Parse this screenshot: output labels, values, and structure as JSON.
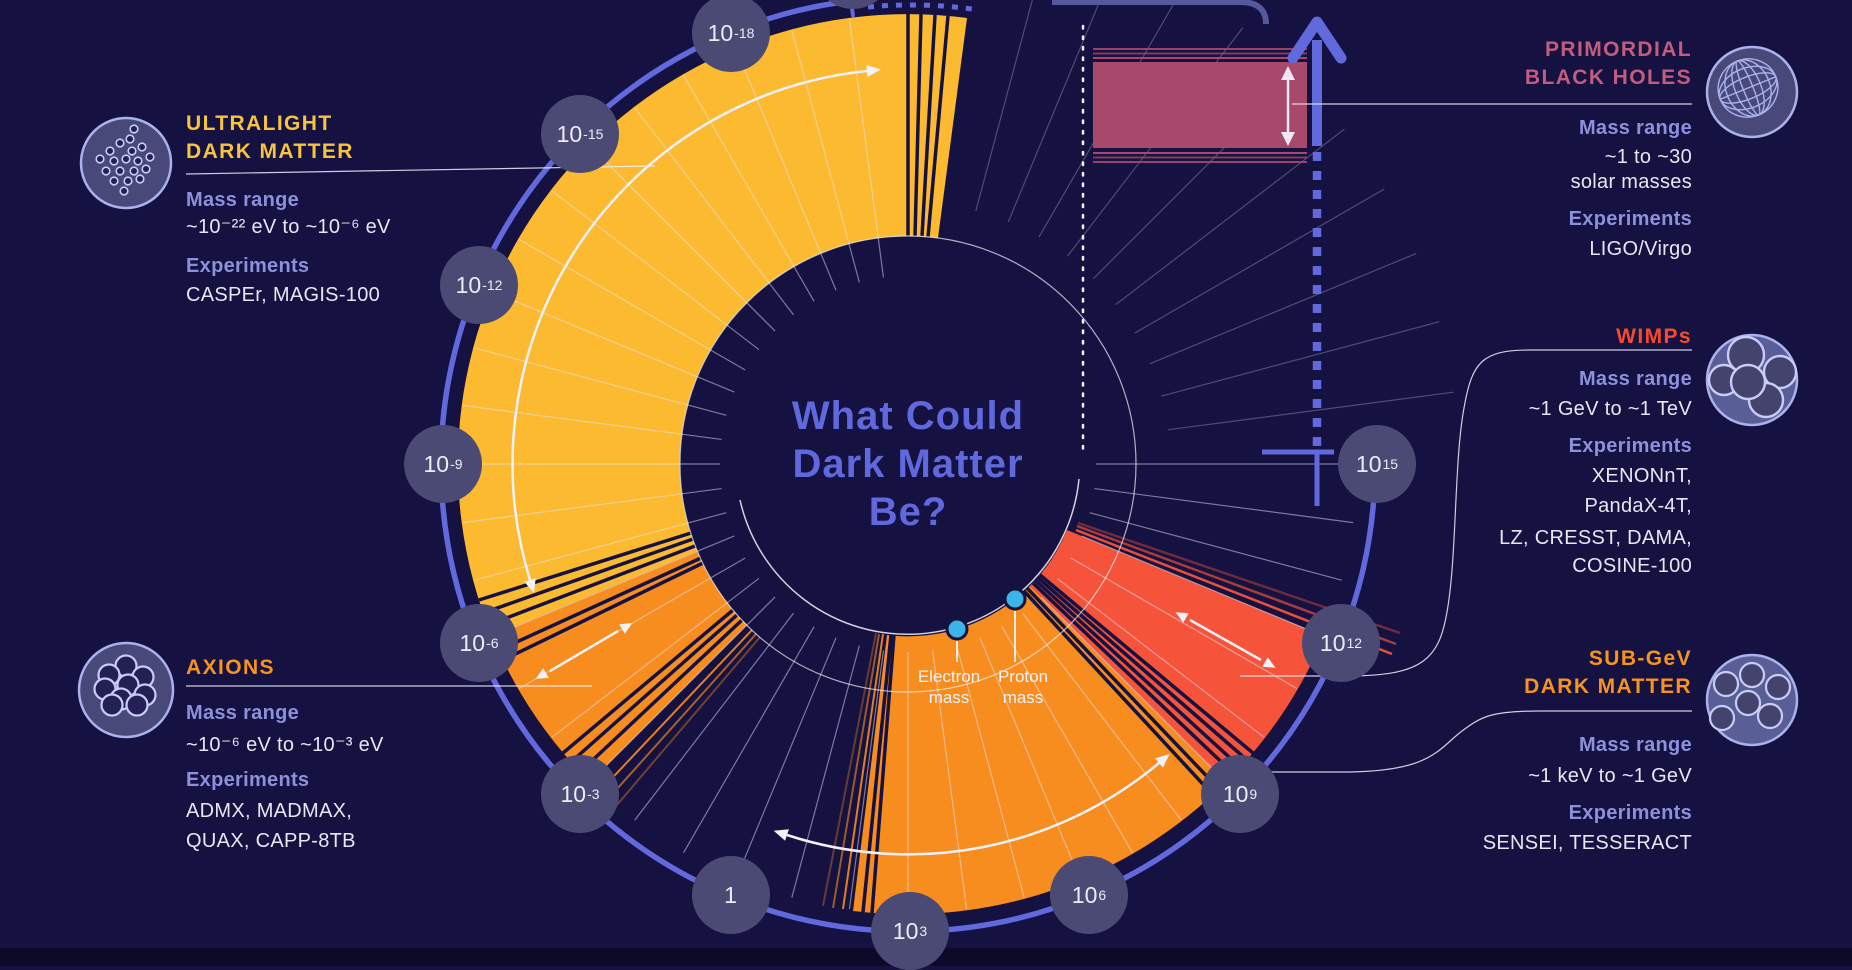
{
  "title": {
    "lines": [
      "What Could",
      "Dark Matter",
      "Be?"
    ],
    "color": "#5f68dd"
  },
  "labels": {
    "mass_range": "Mass range",
    "experiments": "Experiments"
  },
  "panels": {
    "ultralight": {
      "heading": [
        "ULTRALIGHT",
        "DARK MATTER"
      ],
      "heading_color": "#f6c440",
      "mass_range": [
        "~10⁻²² eV to ~10⁻⁶ eV"
      ],
      "experiments": [
        "CASPEr, MAGIS-100"
      ]
    },
    "axions": {
      "heading": [
        "AXIONS"
      ],
      "heading_color": "#f7941d",
      "mass_range": [
        "~10⁻⁶ eV to ~10⁻³ eV"
      ],
      "experiments": [
        "ADMX, MADMAX,",
        "QUAX, CAPP-8TB"
      ]
    },
    "pbh": {
      "heading": [
        "PRIMORDIAL",
        "BLACK HOLES"
      ],
      "heading_color": "#c25d7d",
      "mass_range": [
        "~1 to ~30",
        "solar masses"
      ],
      "experiments": [
        "LIGO/Virgo"
      ]
    },
    "wimps": {
      "heading": [
        "WIMPs"
      ],
      "heading_color": "#f64b2d",
      "mass_range": [
        "~1 GeV to ~1 TeV"
      ],
      "experiments": [
        "XENONnT,",
        "PandaX-4T,",
        "LZ, CRESST, DAMA,",
        "COSINE-100"
      ]
    },
    "subgev": {
      "heading": [
        "SUB-GeV",
        "DARK MATTER"
      ],
      "heading_color": "#f7941d",
      "mass_range": [
        "~1 keV to ~1 GeV"
      ],
      "experiments": [
        "SENSEI, TESSERACT"
      ]
    }
  },
  "center_markers": {
    "electron": {
      "line1": "Electron",
      "line2": "mass"
    },
    "proton": {
      "line1": "Proton",
      "line2": "mass"
    }
  },
  "chart_data": {
    "type": "circular-log-scale",
    "unit": "eV",
    "degrees_per_decade": 7.5,
    "scale_ticks": [
      {
        "base": "10",
        "exp": "-18"
      },
      {
        "base": "10",
        "exp": "-15"
      },
      {
        "base": "10",
        "exp": "-12"
      },
      {
        "base": "10",
        "exp": "-9"
      },
      {
        "base": "10",
        "exp": "-6"
      },
      {
        "base": "10",
        "exp": "-3"
      },
      {
        "base": "1",
        "exp": ""
      },
      {
        "base": "10",
        "exp": "3"
      },
      {
        "base": "10",
        "exp": "6"
      },
      {
        "base": "10",
        "exp": "9"
      },
      {
        "base": "10",
        "exp": "12"
      },
      {
        "base": "10",
        "exp": "15"
      }
    ],
    "segments": [
      {
        "name": "Ultralight dark matter",
        "range_ev": [
          "1e-22",
          "1e-6"
        ],
        "color": "#fcba30",
        "experiments": "CASPEr, MAGIS-100"
      },
      {
        "name": "Axions",
        "range_ev": [
          "1e-6",
          "1e-3"
        ],
        "color": "#f78d1f",
        "experiments": "ADMX, MADMAX, QUAX, CAPP-8TB"
      },
      {
        "name": "Sub-GeV dark matter",
        "range_ev": [
          "1e3",
          "1e9"
        ],
        "color": "#f78d1f",
        "experiments": "SENSEI, TESSERACT"
      },
      {
        "name": "WIMPs",
        "range_ev": [
          "1e9",
          "1e12"
        ],
        "color": "#f5543a",
        "experiments": "XENONnT, PandaX-4T, LZ, CRESST, DAMA, COSINE-100"
      },
      {
        "name": "Primordial black holes",
        "range": "~1 to ~30 solar masses",
        "color": "#a8486b",
        "experiments": "LIGO/Virgo"
      }
    ],
    "point_markers": [
      {
        "label": "Electron mass",
        "color": "#3cb4e6"
      },
      {
        "label": "Proton mass",
        "color": "#3cb4e6"
      }
    ]
  }
}
